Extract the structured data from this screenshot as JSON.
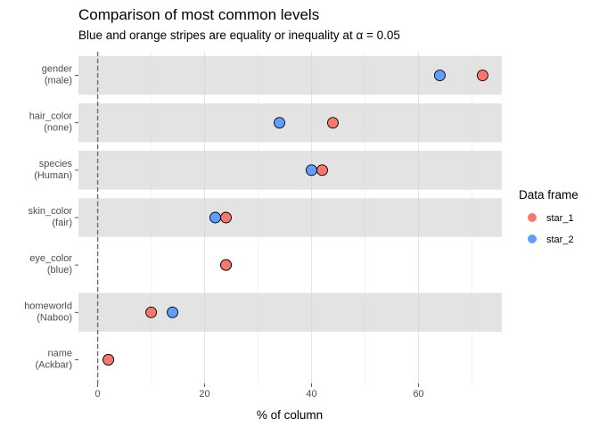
{
  "chart_data": {
    "type": "scatter",
    "title": "Comparison of most common levels",
    "subtitle": "Blue and orange stripes are equality or inequality at α = 0.05",
    "xlabel": "% of column",
    "ylabel": "",
    "xlim": [
      -3.6,
      75.6
    ],
    "x_ticks": [
      0,
      20,
      40,
      60
    ],
    "grid": true,
    "reference_line_x": 0,
    "categories": [
      {
        "name": "gender",
        "level": "(male)",
        "striped": true
      },
      {
        "name": "hair_color",
        "level": "(none)",
        "striped": true
      },
      {
        "name": "species",
        "level": "(Human)",
        "striped": true
      },
      {
        "name": "skin_color",
        "level": "(fair)",
        "striped": true
      },
      {
        "name": "eye_color",
        "level": "(blue)",
        "striped": false
      },
      {
        "name": "homeworld",
        "level": "(Naboo)",
        "striped": true
      },
      {
        "name": "name",
        "level": "(Ackbar)",
        "striped": false
      }
    ],
    "series": [
      {
        "name": "star_1",
        "color": "#F8766D",
        "values": [
          72,
          44,
          42,
          24,
          24,
          10,
          2
        ]
      },
      {
        "name": "star_2",
        "color": "#619CFF",
        "values": [
          64,
          34,
          40,
          22,
          24,
          14,
          2
        ]
      }
    ],
    "legend": {
      "title": "Data frame",
      "placement": "right"
    },
    "stripe_color": "#e3e3e3"
  }
}
